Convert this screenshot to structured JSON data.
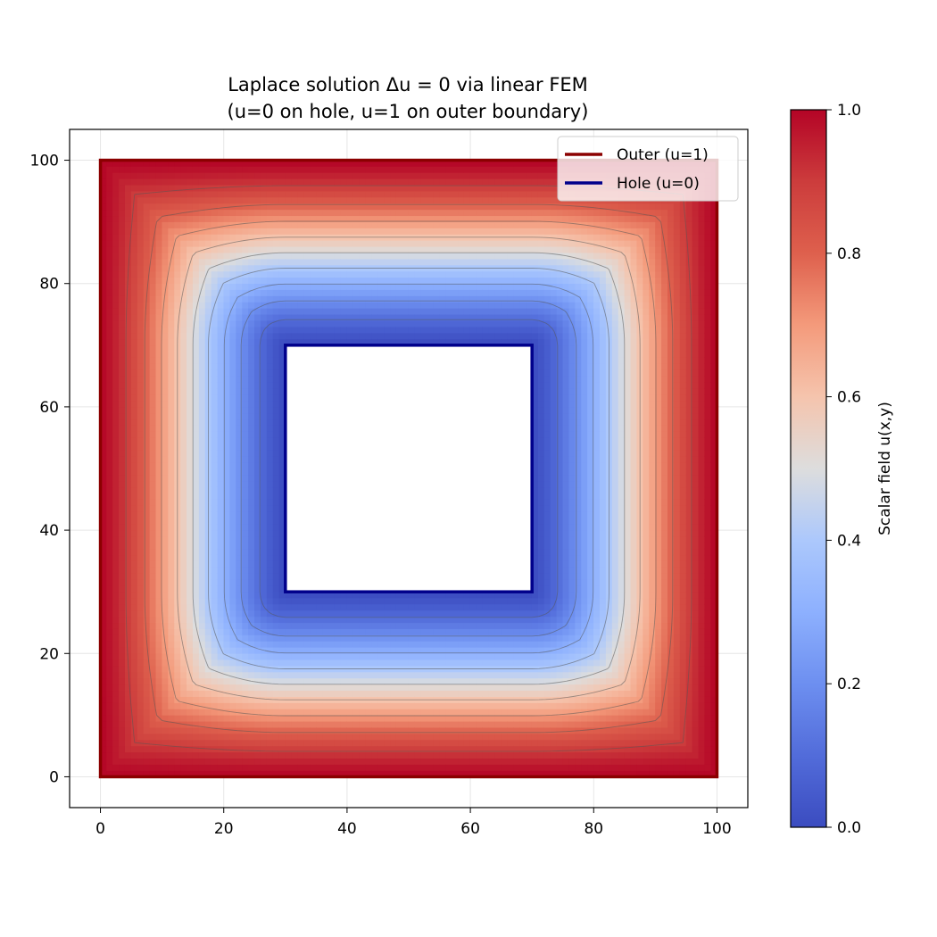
{
  "chart_data": {
    "type": "heatmap",
    "title": "Laplace solution Δu = 0 via linear FEM",
    "subtitle": "(u=0 on hole, u=1 on outer boundary)",
    "xlim": [
      -5,
      105
    ],
    "ylim": [
      -5,
      105
    ],
    "x_ticks": [
      0,
      20,
      40,
      60,
      80,
      100
    ],
    "y_ticks": [
      0,
      20,
      40,
      60,
      80,
      100
    ],
    "x_tick_labels": [
      "0",
      "20",
      "40",
      "60",
      "80",
      "100"
    ],
    "y_tick_labels": [
      "0",
      "20",
      "40",
      "60",
      "80",
      "100"
    ],
    "grid": true,
    "outer_boundary": {
      "x": [
        0,
        100
      ],
      "y": [
        0,
        100
      ],
      "value": 1
    },
    "hole": {
      "x": [
        30,
        70
      ],
      "y": [
        30,
        70
      ],
      "value": 0
    },
    "contour_levels": [
      0.1,
      0.2,
      0.3,
      0.4,
      0.5,
      0.6,
      0.7,
      0.8,
      0.9
    ],
    "legend": {
      "placement": "upper-right",
      "entries": [
        {
          "label": "Outer (u=1)",
          "color": "#8b0000"
        },
        {
          "label": "Hole (u=0)",
          "color": "#00008b"
        }
      ]
    },
    "colorbar": {
      "label": "Scalar field u(x,y)",
      "range": [
        0,
        1
      ],
      "ticks": [
        0.0,
        0.2,
        0.4,
        0.6,
        0.8,
        1.0
      ],
      "tick_labels": [
        "0.0",
        "0.2",
        "0.4",
        "0.6",
        "0.8",
        "1.0"
      ],
      "colormap": "coolwarm"
    }
  }
}
